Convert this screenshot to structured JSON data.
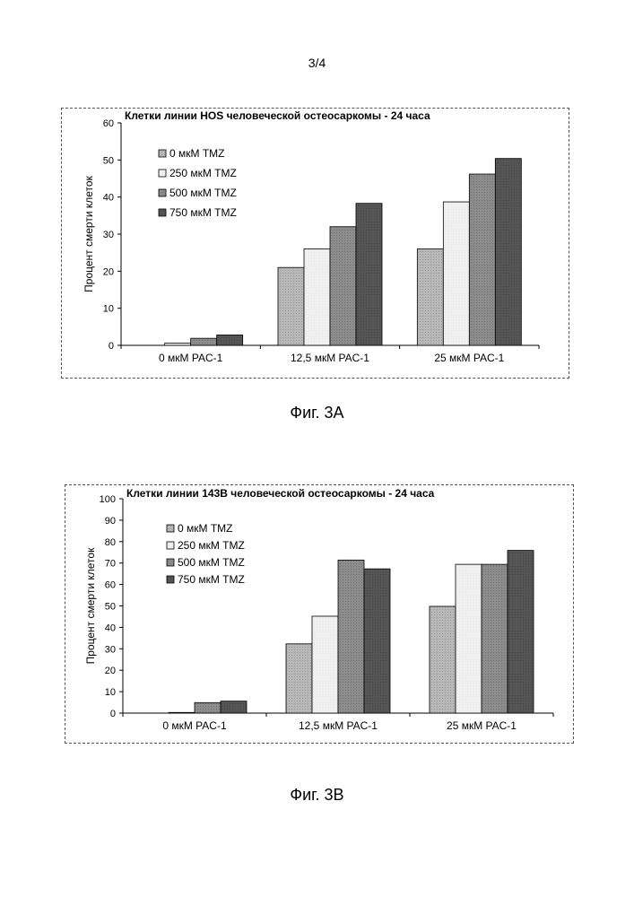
{
  "page": {
    "number": "3/4"
  },
  "figures": [
    {
      "caption": "Фиг. 3A"
    },
    {
      "caption": "Фиг. 3B"
    }
  ],
  "colors": {
    "tmz0": "#b8b8b8",
    "tmz250": "#eeeeee",
    "tmz500": "#8c8c8c",
    "tmz750": "#555555",
    "axis": "#000000"
  },
  "chart_data": [
    {
      "type": "bar",
      "title": "Клетки линии HOS человеческой остеосаркомы - 24 часа",
      "xlabel": "",
      "ylabel": "Процент смерти клеток",
      "ylim": [
        0,
        60
      ],
      "yticks": [
        0,
        10,
        20,
        30,
        40,
        50,
        60
      ],
      "categories": [
        "0 мкМ PAC-1",
        "12,5 мкМ PAC-1",
        "25 мкМ PAC-1"
      ],
      "legend_position": "top-left",
      "series": [
        {
          "name": "0 мкМ TMZ",
          "values": [
            0,
            21,
            26
          ]
        },
        {
          "name": "250 мкМ TMZ",
          "values": [
            0.6,
            26,
            38.7
          ]
        },
        {
          "name": "500 мкМ TMZ",
          "values": [
            1.9,
            32,
            46.2
          ]
        },
        {
          "name": "750 мкМ TMZ",
          "values": [
            2.8,
            38.3,
            50.4
          ]
        }
      ]
    },
    {
      "type": "bar",
      "title": "Клетки линии 143B человеческой остеосаркомы - 24 часа",
      "xlabel": "",
      "ylabel": "Процент смерти клеток",
      "ylim": [
        0,
        100
      ],
      "yticks": [
        0,
        10,
        20,
        30,
        40,
        50,
        60,
        70,
        80,
        90,
        100
      ],
      "categories": [
        "0 мкМ PAC-1",
        "12,5 мкМ PAC-1",
        "25 мкМ PAC-1"
      ],
      "legend_position": "top-left",
      "series": [
        {
          "name": "0 мкМ TMZ",
          "values": [
            0,
            32.3,
            49.8
          ]
        },
        {
          "name": "250 мкМ TMZ",
          "values": [
            0.3,
            45.2,
            69.4
          ]
        },
        {
          "name": "500 мкМ TMZ",
          "values": [
            4.9,
            71.4,
            69.4
          ]
        },
        {
          "name": "750 мкМ TMZ",
          "values": [
            5.6,
            67.3,
            75.9
          ]
        }
      ]
    }
  ]
}
